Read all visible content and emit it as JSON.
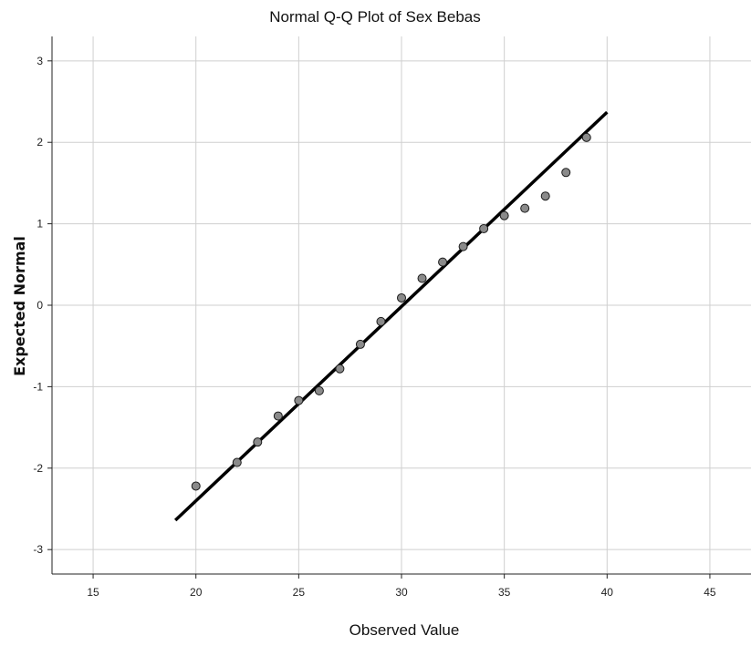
{
  "chart_data": {
    "type": "scatter",
    "title": "Normal Q-Q Plot of Sex Bebas",
    "xlabel": "Observed Value",
    "ylabel": "Expected Normal",
    "xlim": [
      13,
      47
    ],
    "ylim": [
      -3.3,
      3.3
    ],
    "xticks": [
      15,
      20,
      25,
      30,
      35,
      40,
      45
    ],
    "yticks": [
      3,
      2,
      1,
      0,
      -1,
      -2,
      -3
    ],
    "grid": true,
    "series": [
      {
        "type": "scatter",
        "x": [
          20,
          22,
          23,
          24,
          25,
          26,
          27,
          28,
          29,
          30,
          31,
          32,
          33,
          34,
          35,
          36,
          37,
          38,
          39
        ],
        "y": [
          -2.22,
          -1.93,
          -1.68,
          -1.36,
          -1.17,
          -1.05,
          -0.78,
          -0.48,
          -0.2,
          0.09,
          0.33,
          0.53,
          0.72,
          0.94,
          1.1,
          1.19,
          1.34,
          1.63,
          2.06
        ],
        "color": "#8a8a8a"
      },
      {
        "type": "line",
        "x": [
          19,
          40
        ],
        "y": [
          -2.64,
          2.37
        ],
        "color": "#000000"
      }
    ]
  }
}
